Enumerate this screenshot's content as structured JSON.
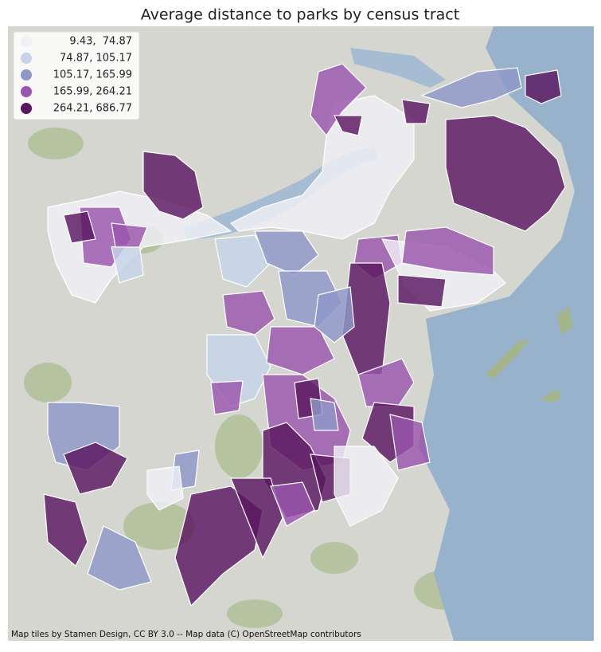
{
  "map": {
    "title": "Average distance to parks by census tract",
    "legend": [
      {
        "label": " 9.43,  74.87",
        "color": "#f0f0f6"
      },
      {
        "label": " 74.87, 105.17",
        "color": "#c6d4e8"
      },
      {
        "label": "105.17, 165.99",
        "color": "#8f97c9"
      },
      {
        "label": "165.99, 264.21",
        "color": "#9a56ac"
      },
      {
        "label": "264.21, 686.77",
        "color": "#5a1660"
      }
    ],
    "attribution": "Map tiles by Stamen Design, CC BY 3.0 -- Map data (C) OpenStreetMap contributors"
  }
}
